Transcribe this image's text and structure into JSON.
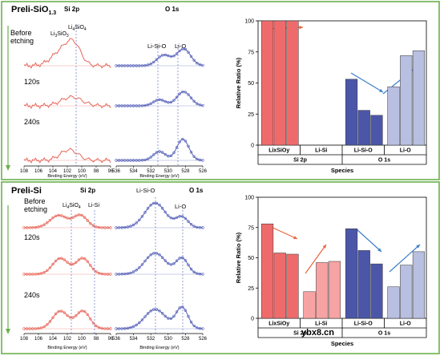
{
  "panels": [
    {
      "title_main": "Preli-SiO",
      "title_sub": "1.3",
      "si2p_header": "Si 2p",
      "o1s_header": "O 1s",
      "si_peak_labels": [
        "Li",
        "SiO",
        "3",
        "Li",
        "SiO",
        "4"
      ],
      "o_peak_labels": [
        "Li-Si-O",
        "Li-O"
      ],
      "time_labels": [
        "Before",
        "etching",
        "120s",
        "240s"
      ],
      "si_ticks": [
        "108",
        "106",
        "104",
        "102",
        "100",
        "98",
        "96"
      ],
      "o_ticks": [
        "536",
        "534",
        "532",
        "530",
        "528",
        "526"
      ],
      "xlabel": "Binding Energy (eV)"
    },
    {
      "title_main": "Preli-Si",
      "si2p_header": "Si 2p",
      "o1s_header": "O 1s",
      "si_peak_labels": [
        "Li",
        "SiO",
        "4",
        "Li-Si"
      ],
      "o_peak_labels": [
        "Li-Si-O",
        "Li-O"
      ],
      "time_labels": [
        "Before",
        "etching",
        "120s",
        "240s"
      ],
      "si_ticks": [
        "108",
        "106",
        "104",
        "102",
        "100",
        "98",
        "96"
      ],
      "o_ticks": [
        "536",
        "534",
        "532",
        "530",
        "528",
        "526"
      ],
      "xlabel": "Binding Energy (eV)"
    }
  ],
  "chart_data": [
    {
      "type": "bar",
      "ylabel": "Relative Ratio (%)",
      "xlabel": "Species",
      "ylim": [
        0,
        100
      ],
      "yticks": [
        "0",
        "25",
        "50",
        "75",
        "100"
      ],
      "groups": [
        "LixSiOy",
        "Li-Si",
        "Li-Si-O",
        "Li-O"
      ],
      "parents": [
        "Si 2p",
        "O 1s"
      ],
      "series": [
        {
          "group": "LixSiOy",
          "values": [
            100,
            100,
            100
          ],
          "color": "#ef6b6b"
        },
        {
          "group": "Li-Si",
          "values": [
            0,
            0,
            0
          ],
          "color": "#f7a3a3"
        },
        {
          "group": "Li-Si-O",
          "values": [
            53,
            28,
            24
          ],
          "color": "#4b56a8"
        },
        {
          "group": "Li-O",
          "values": [
            47,
            72,
            76
          ],
          "color": "#b8bfe0"
        }
      ]
    },
    {
      "type": "bar",
      "ylabel": "Relative Ratio (%)",
      "xlabel": "Species",
      "ylim": [
        0,
        100
      ],
      "yticks": [
        "0",
        "25",
        "50",
        "75",
        "100"
      ],
      "groups": [
        "LixSiOy",
        "Li-Si",
        "Li-Si-O",
        "Li-O"
      ],
      "parents": [
        "Si 2p",
        "O 1s"
      ],
      "series": [
        {
          "group": "LixSiOy",
          "values": [
            78,
            54,
            53
          ],
          "color": "#ef6b6b"
        },
        {
          "group": "Li-Si",
          "values": [
            22,
            46,
            47
          ],
          "color": "#f7a3a3"
        },
        {
          "group": "Li-Si-O",
          "values": [
            74,
            56,
            45
          ],
          "color": "#4b56a8"
        },
        {
          "group": "Li-O",
          "values": [
            26,
            44,
            55
          ],
          "color": "#b8bfe0"
        }
      ]
    }
  ],
  "watermark": "ybx8.cn",
  "colors": {
    "frame": "#6ab04c",
    "si_data": "#e8665a",
    "o_data": "#5560b8",
    "arrow_red": "#e8663c",
    "arrow_blue": "#3d7fc8"
  }
}
